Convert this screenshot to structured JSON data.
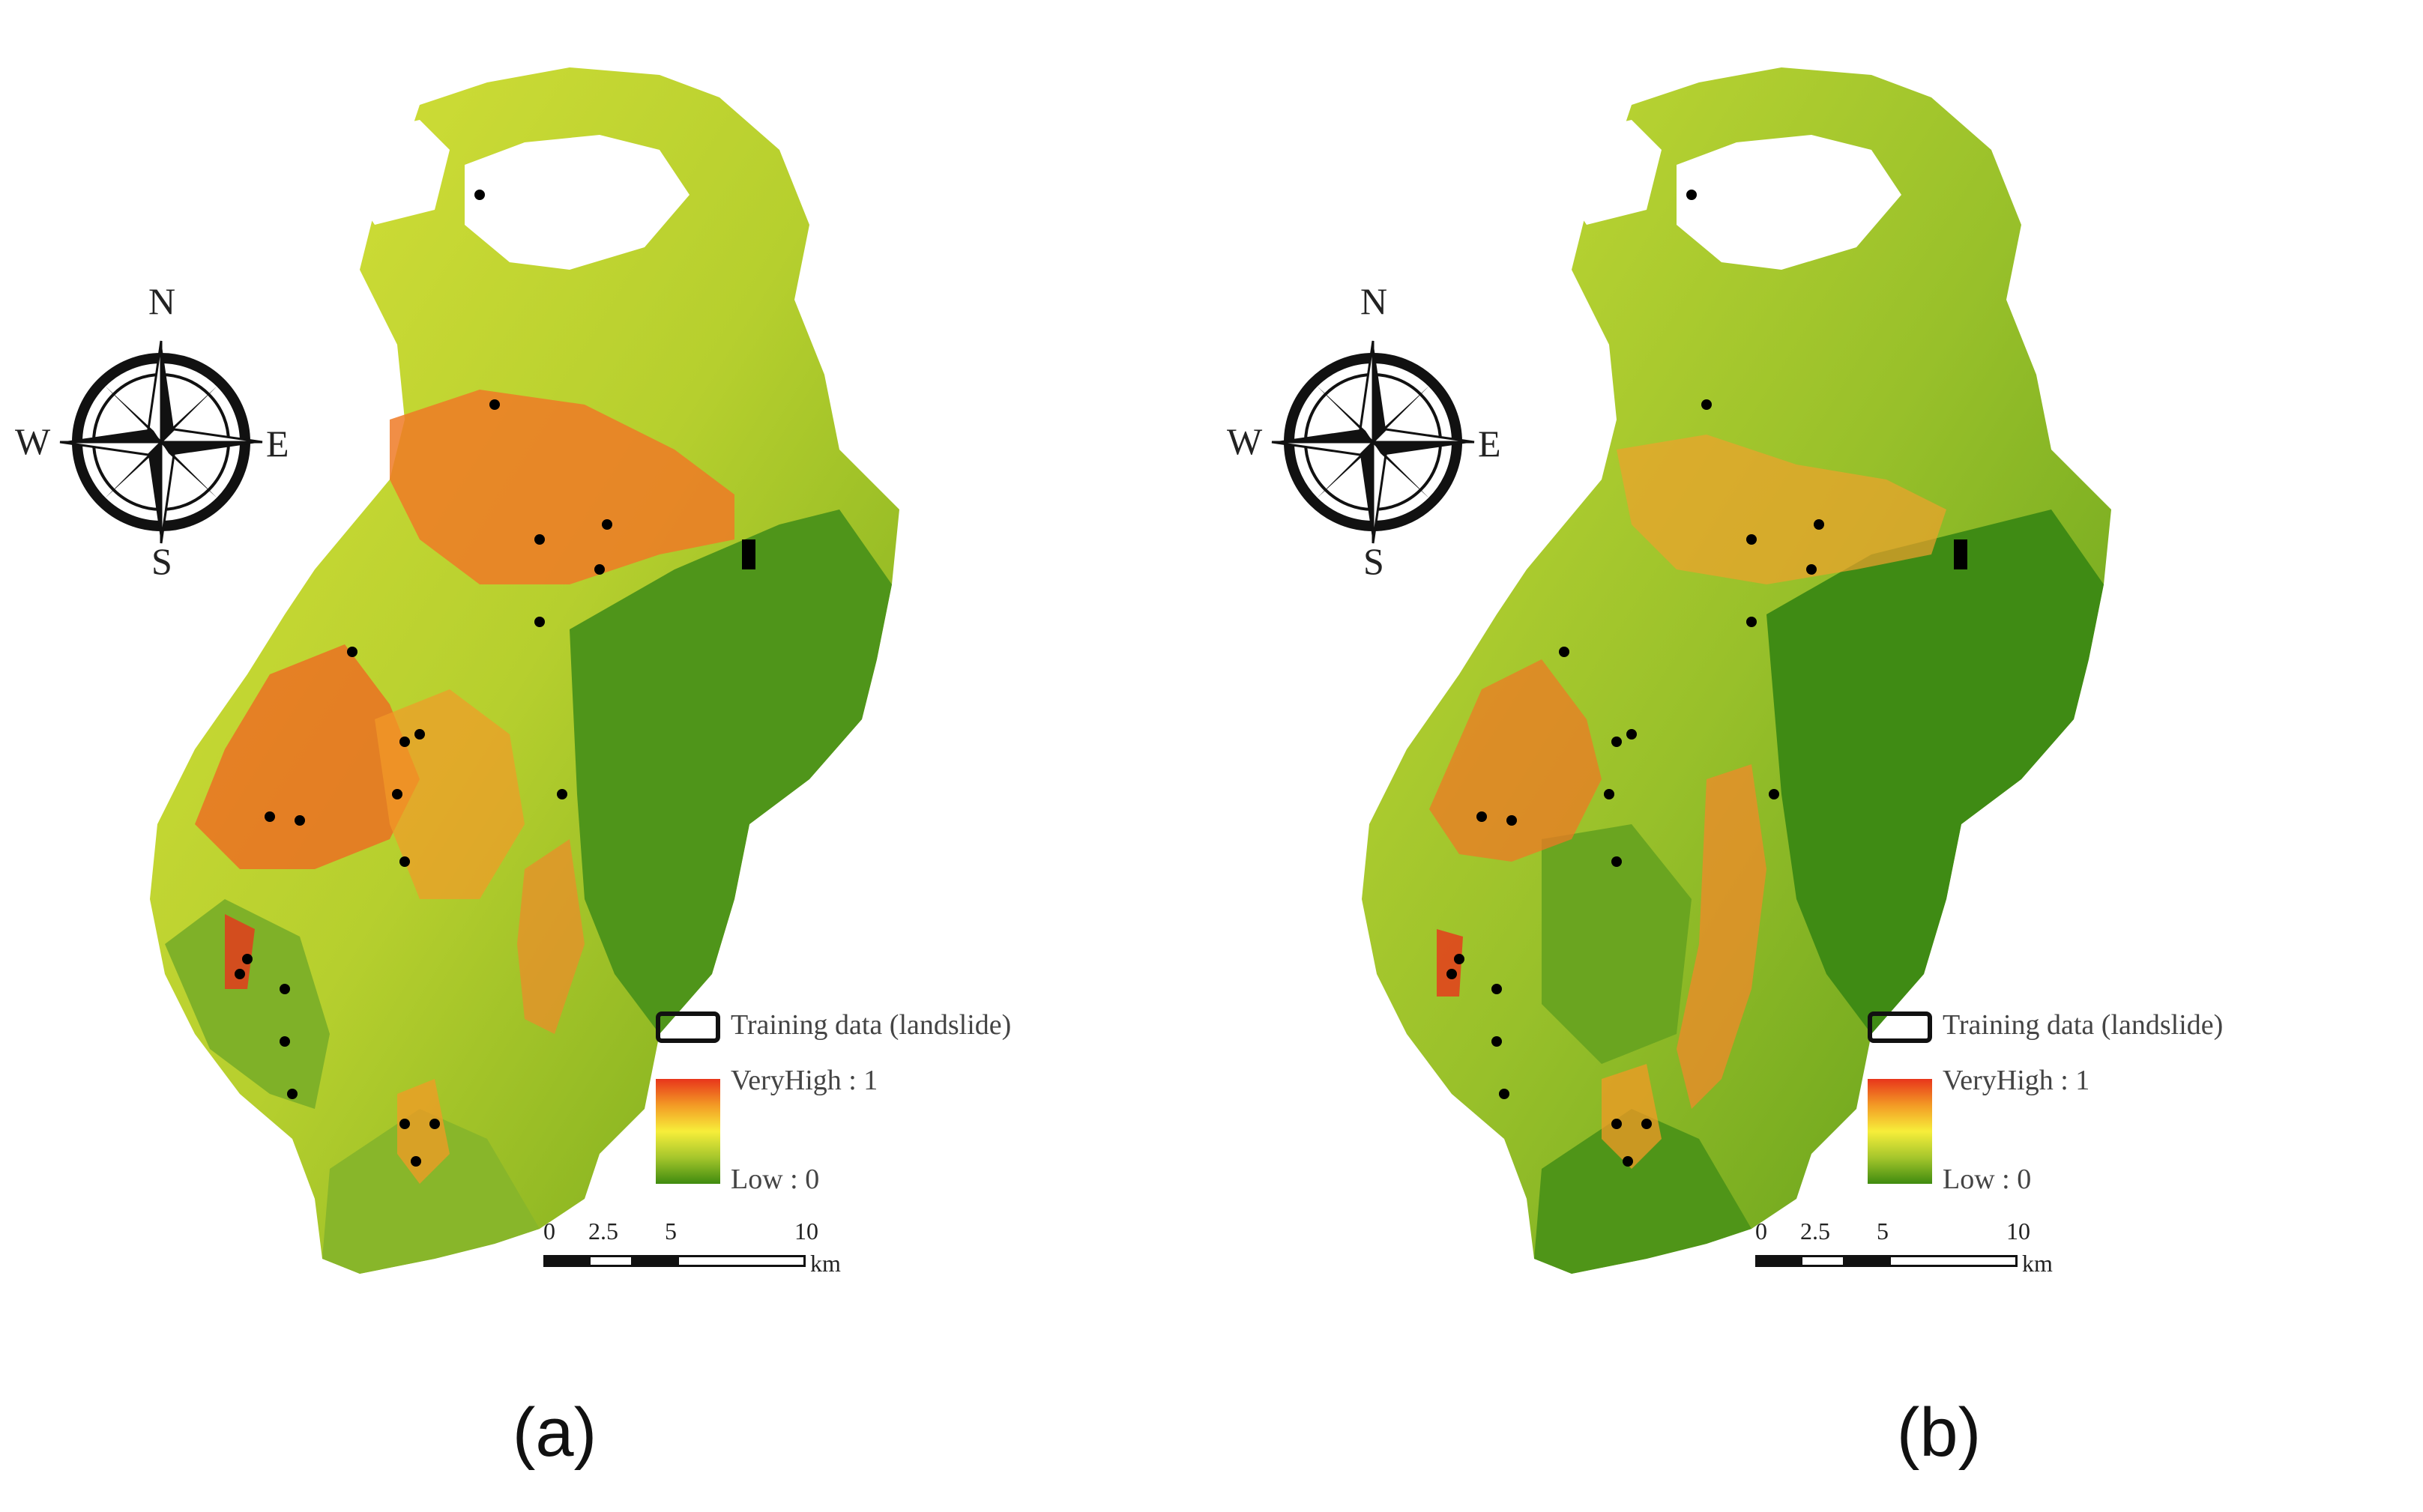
{
  "panels": [
    {
      "caption": "(a)",
      "legend": {
        "training_label": "Training data (landslide)",
        "high_label": "VeryHigh : 1",
        "low_label": "Low : 0"
      },
      "compass": {
        "n": "N",
        "s": "S",
        "e": "E",
        "w": "W"
      },
      "scale_bar": {
        "ticks": [
          "0",
          "2.5",
          "5",
          "10"
        ],
        "unit": "km"
      }
    },
    {
      "caption": "(b)",
      "legend": {
        "training_label": "Training data (landslide)",
        "high_label": "VeryHigh : 1",
        "low_label": "Low : 0"
      },
      "compass": {
        "n": "N",
        "s": "S",
        "e": "E",
        "w": "W"
      },
      "scale_bar": {
        "ticks": [
          "0",
          "2.5",
          "5",
          "10"
        ],
        "unit": "km"
      }
    }
  ],
  "colors": {
    "very_high": "#e8351b",
    "high": "#f39a25",
    "medium": "#f7ee3a",
    "low_medium": "#a5c62c",
    "low": "#3f8b0f",
    "training_point": "#000000"
  }
}
